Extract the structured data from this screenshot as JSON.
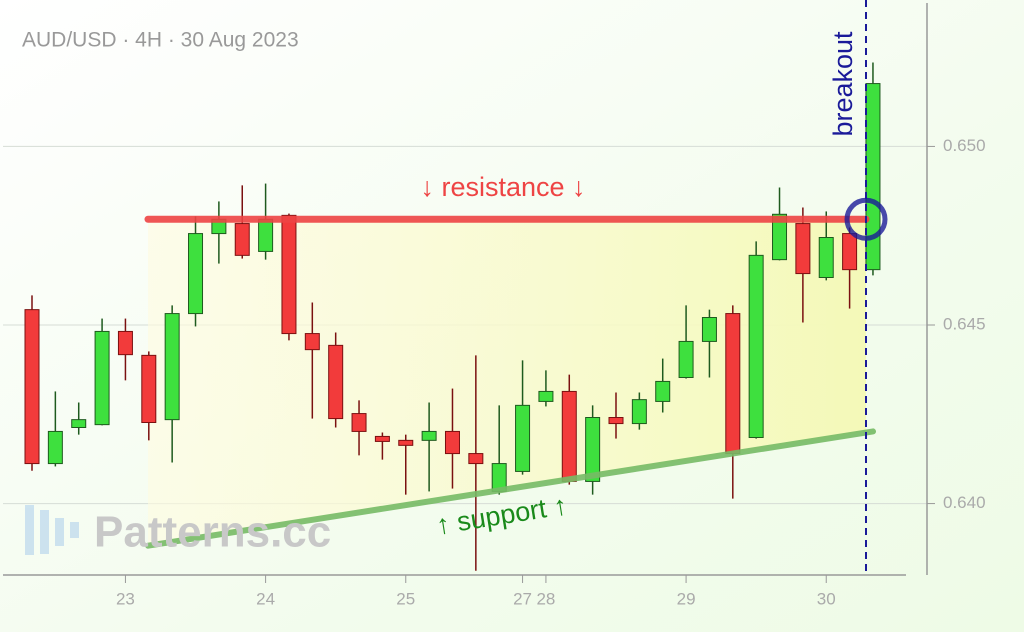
{
  "chart_data": {
    "type": "candlestick",
    "title": "AUD/USD · 4H · 30 Aug 2023",
    "watermark": "Patterns.cc",
    "categories": [
      null,
      null,
      null,
      null,
      "23",
      null,
      null,
      null,
      null,
      null,
      "24",
      null,
      null,
      null,
      null,
      null,
      "25",
      null,
      null,
      null,
      null,
      "27",
      "28",
      null,
      null,
      null,
      null,
      null,
      "29",
      null,
      null,
      null,
      null,
      null,
      "30",
      null,
      null
    ],
    "open": [
      0.64543,
      0.64112,
      0.64213,
      0.64221,
      0.64482,
      0.64415,
      0.64235,
      0.64532,
      0.64756,
      0.64784,
      0.64706,
      0.64807,
      0.64476,
      0.64443,
      0.64252,
      0.64188,
      0.64177,
      0.64177,
      0.64202,
      0.6414,
      0.64034,
      0.6409,
      0.64286,
      0.64314,
      0.64062,
      0.64241,
      0.64224,
      0.64286,
      0.64353,
      0.64454,
      0.64532,
      0.64185,
      0.64683,
      0.64784,
      0.64633,
      0.64756,
      0.64655
    ],
    "high": [
      0.64583,
      0.64314,
      0.64283,
      0.64518,
      0.64518,
      0.64426,
      0.64555,
      0.64804,
      0.64846,
      0.64891,
      0.64896,
      0.64812,
      0.64563,
      0.64479,
      0.64289,
      0.64199,
      0.64193,
      0.64283,
      0.64322,
      0.64415,
      0.64275,
      0.64401,
      0.64373,
      0.64361,
      0.64275,
      0.64311,
      0.64311,
      0.64406,
      0.64555,
      0.64543,
      0.64555,
      0.64734,
      0.64885,
      0.64829,
      0.64818,
      0.64773,
      0.65235
    ],
    "low": [
      0.64092,
      0.64104,
      0.64193,
      0.64219,
      0.64345,
      0.64177,
      0.64115,
      0.64496,
      0.64672,
      0.64686,
      0.64683,
      0.64457,
      0.64238,
      0.64213,
      0.64135,
      0.64123,
      0.64025,
      0.64034,
      0.64042,
      0.63812,
      0.64025,
      0.64081,
      0.64272,
      0.64053,
      0.64025,
      0.64182,
      0.64207,
      0.64255,
      0.6435,
      0.64353,
      0.64014,
      0.64182,
      0.64681,
      0.64507,
      0.64625,
      0.64546,
      0.64639
    ],
    "close": [
      0.64112,
      0.64202,
      0.64235,
      0.64482,
      0.64417,
      0.64227,
      0.64532,
      0.64756,
      0.64796,
      0.64695,
      0.64796,
      0.64476,
      0.64431,
      0.64238,
      0.64202,
      0.64174,
      0.64163,
      0.64202,
      0.6414,
      0.64112,
      0.64112,
      0.64275,
      0.64314,
      0.64062,
      0.64241,
      0.64224,
      0.64291,
      0.64342,
      0.64454,
      0.64521,
      0.6414,
      0.64695,
      0.6481,
      0.64644,
      0.64745,
      0.64655,
      0.65176
    ],
    "up_color": "#3ee03e",
    "down_color": "#f23b3b",
    "ylim": [
      0.638,
      0.6541
    ],
    "yticks": [
      {
        "value": 0.64,
        "label": "0.640"
      },
      0.645,
      {
        "value": 0.65,
        "label": "0.650"
      }
    ],
    "grid": true,
    "resistance": {
      "label": "↓ resistance ↓",
      "value": 0.64796,
      "color": "#ee4444"
    },
    "support": {
      "label": "↑ support ↑",
      "start": 0.63882,
      "end": 0.64202,
      "color": "#77bb66"
    },
    "breakout": {
      "label": "breakout",
      "color": "#1a1a99"
    }
  }
}
